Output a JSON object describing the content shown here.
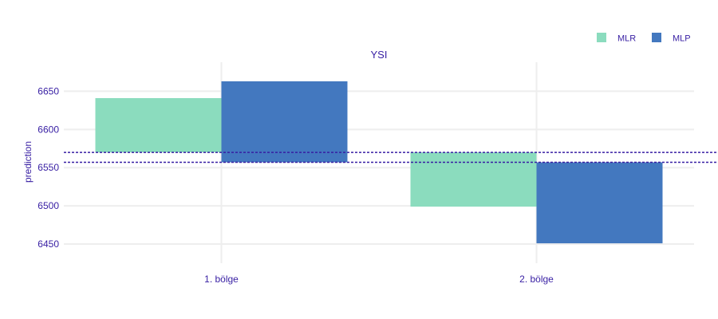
{
  "chart_data": {
    "type": "bar",
    "subplot_title": "YSI",
    "ylabel": "prediction",
    "xlabel": "",
    "categories": [
      "1. bölge",
      "2. bölge"
    ],
    "ylim": [
      6425,
      6688
    ],
    "yticks": [
      6450,
      6500,
      6550,
      6600,
      6650
    ],
    "grid": true,
    "legend_position": "top-right",
    "series": [
      {
        "name": "MLR",
        "color": "#8bdcbe",
        "baseline": 6570,
        "values": [
          6641,
          6499
        ]
      },
      {
        "name": "MLP",
        "color": "#4378bf",
        "baseline": 6557,
        "values": [
          6663,
          6451
        ]
      }
    ],
    "reference_lines": [
      {
        "series": "MLR",
        "value": 6570,
        "style": "dotted",
        "color": "#371ea3"
      },
      {
        "series": "MLP",
        "value": 6557,
        "style": "dotted",
        "color": "#371ea3"
      }
    ]
  }
}
